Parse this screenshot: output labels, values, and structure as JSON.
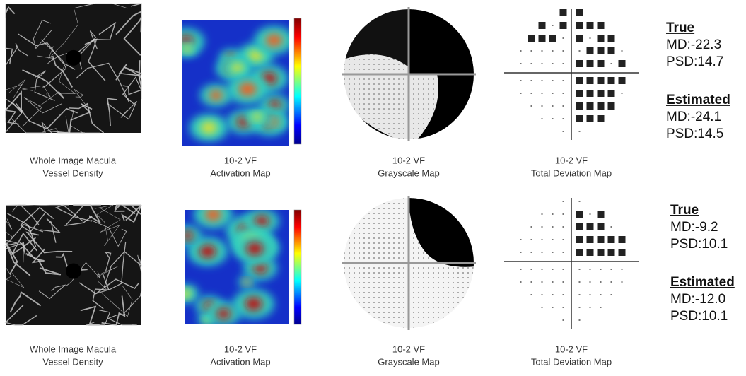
{
  "rows": [
    {
      "panels": [
        {
          "caption": [
            "Whole Image Macula",
            "Vessel Density"
          ]
        },
        {
          "caption": [
            "10-2 VF",
            "Activation Map"
          ]
        },
        {
          "caption": [
            "10-2 VF",
            "Grayscale Map"
          ]
        },
        {
          "caption": [
            "10-2 VF",
            "Total Deviation Map"
          ]
        }
      ],
      "stats": {
        "true_heading": "True",
        "true_md": "MD:-22.3",
        "true_psd": "PSD:14.7",
        "est_heading": "Estimated",
        "est_md": "MD:-24.1",
        "est_psd": "PSD:14.5"
      }
    },
    {
      "panels": [
        {
          "caption": [
            "Whole Image Macula",
            "Vessel Density"
          ]
        },
        {
          "caption": [
            "10-2 VF",
            "Activation Map"
          ]
        },
        {
          "caption": [
            "10-2 VF",
            "Grayscale Map"
          ]
        },
        {
          "caption": [
            "10-2 VF",
            "Total Deviation Map"
          ]
        }
      ],
      "stats": {
        "true_heading": "True",
        "true_md": "MD:-9.2",
        "true_psd": "PSD:10.1",
        "est_heading": "Estimated",
        "est_md": "MD:-12.0",
        "est_psd": "PSD:10.1"
      }
    }
  ]
}
